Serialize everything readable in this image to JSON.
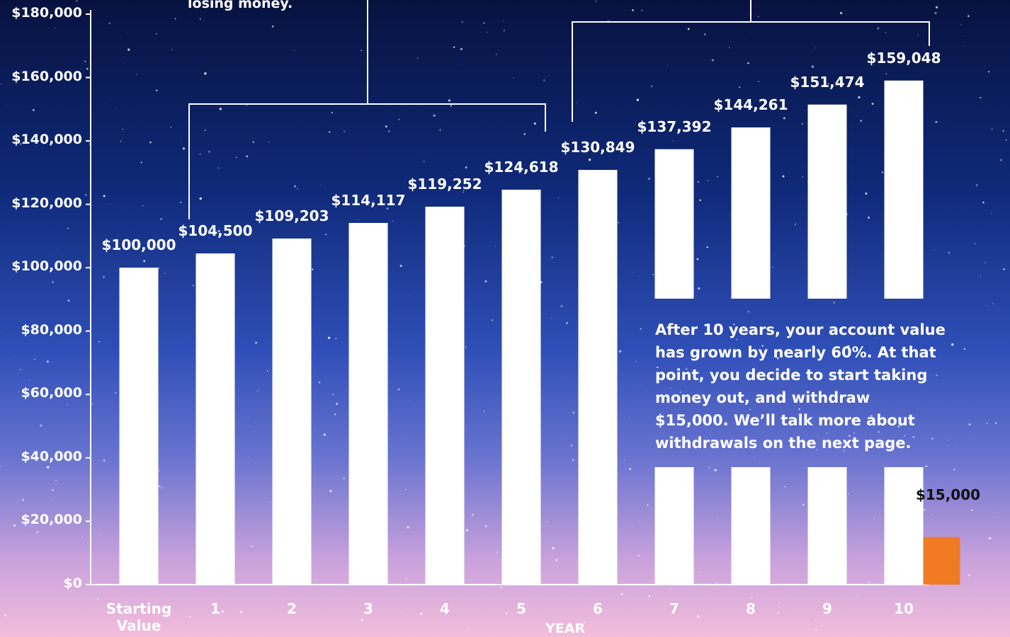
{
  "chart_data": {
    "type": "bar",
    "categories": [
      "Starting Value",
      "1",
      "2",
      "3",
      "4",
      "5",
      "6",
      "7",
      "8",
      "9",
      "10"
    ],
    "values": [
      100000,
      104500,
      109203,
      114117,
      119252,
      124618,
      130849,
      137392,
      144261,
      151474,
      159048
    ],
    "value_labels": [
      "$100,000",
      "$104,500",
      "$109,203",
      "$114,117",
      "$119,252",
      "$124,618",
      "$130,849",
      "$137,392",
      "$144,261",
      "$151,474",
      "$159,048"
    ],
    "color": "#ffffff",
    "withdrawal": {
      "value": 15000,
      "label": "$15,000",
      "color": "#f07b22"
    },
    "xlabel": "YEAR",
    "ylim": [
      0,
      180000
    ],
    "yticks": [
      {
        "value": 0,
        "label": "$0"
      },
      {
        "value": 20000,
        "label": "$20,000"
      },
      {
        "value": 40000,
        "label": "$40,000"
      },
      {
        "value": 60000,
        "label": "$60,000"
      },
      {
        "value": 80000,
        "label": "$80,000"
      },
      {
        "value": 100000,
        "label": "$100,000"
      },
      {
        "value": 120000,
        "label": "$120,000"
      },
      {
        "value": 140000,
        "label": "$140,000"
      },
      {
        "value": 160000,
        "label": "$160,000"
      },
      {
        "value": 180000,
        "label": "$180,000"
      }
    ],
    "grid": false,
    "annotations": [
      "losing money.",
      "After 10 years, your account value has grown by nearly 60%. At that point, you decide to start taking money out, and withdraw $15,000. We’ll talk more about withdrawals on the next page."
    ]
  }
}
